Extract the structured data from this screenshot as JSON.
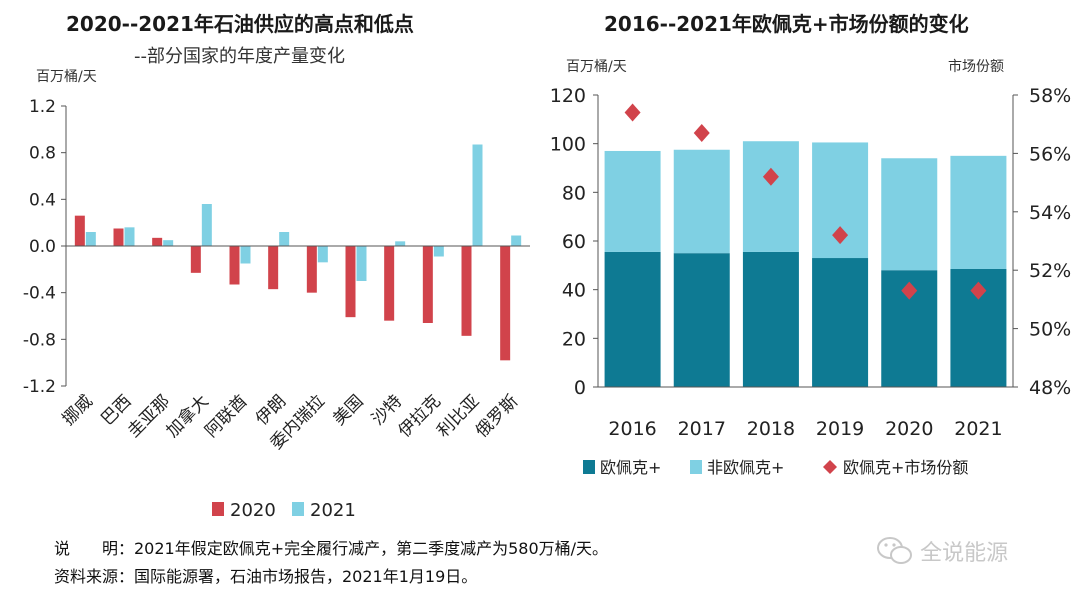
{
  "left": {
    "title": "2020--2021年石油供应的高点和低点",
    "subtitle": "--部分国家的年度产量变化",
    "unit": "百万桶/天"
  },
  "right": {
    "title": "2016--2021年欧佩克+市场份额的变化",
    "unit_left": "百万桶/天",
    "unit_right": "市场份额"
  },
  "notes": {
    "line1": "说　　明：2021年假定欧佩克+完全履行减产，第二季度减产为580万桶/天。",
    "line2": "资料来源：国际能源署，石油市场报告，2021年1月19日。"
  },
  "watermark": "全说能源",
  "colors": {
    "red": "#d1434b",
    "light_blue": "#7fd0e3",
    "teal": "#0e7a93",
    "diamond": "#d1434b"
  },
  "chart_data": [
    {
      "type": "bar",
      "title": "2020--2021年石油供应的高点和低点",
      "subtitle": "--部分国家的年度产量变化",
      "ylabel": "百万桶/天",
      "ylim": [
        -1.2,
        1.2
      ],
      "yticks": [
        "1.2",
        "0.8",
        "0.4",
        "0.0",
        "-0.4",
        "-0.8",
        "-1.2"
      ],
      "ytick_values": [
        1.2,
        0.8,
        0.4,
        0.0,
        -0.4,
        -0.8,
        -1.2
      ],
      "categories": [
        "挪威",
        "巴西",
        "圭亚那",
        "加拿大",
        "阿联酋",
        "伊朗",
        "委内瑞拉",
        "美国",
        "沙特",
        "伊拉克",
        "利比亚",
        "俄罗斯"
      ],
      "series": [
        {
          "name": "2020",
          "values": [
            0.26,
            0.15,
            0.07,
            -0.23,
            -0.33,
            -0.37,
            -0.4,
            -0.61,
            -0.64,
            -0.66,
            -0.77,
            -0.98
          ]
        },
        {
          "name": "2021",
          "values": [
            0.12,
            0.16,
            0.05,
            0.36,
            -0.15,
            0.12,
            -0.14,
            -0.3,
            0.04,
            -0.09,
            0.87,
            0.09
          ]
        }
      ],
      "legend_position": "bottom"
    },
    {
      "type": "bar",
      "title": "2016--2021年欧佩克+市场份额的变化",
      "ylabel": "百万桶/天",
      "y2label": "市场份额",
      "ylim": [
        0,
        120
      ],
      "yticks": [
        "0",
        "20",
        "40",
        "60",
        "80",
        "100",
        "120"
      ],
      "ytick_values": [
        0,
        20,
        40,
        60,
        80,
        100,
        120
      ],
      "y2lim": [
        48,
        58
      ],
      "y2ticks": [
        "48%",
        "50%",
        "52%",
        "54%",
        "56%",
        "58%"
      ],
      "y2tick_values": [
        48,
        50,
        52,
        54,
        56,
        58
      ],
      "categories": [
        "2016",
        "2017",
        "2018",
        "2019",
        "2020",
        "2021"
      ],
      "series": [
        {
          "name": "欧佩克+",
          "values": [
            55.5,
            55.0,
            55.5,
            53.0,
            48.0,
            48.5
          ]
        },
        {
          "name": "非欧佩克+",
          "values": [
            41.5,
            42.5,
            45.5,
            47.5,
            46.0,
            46.5
          ]
        },
        {
          "name": "欧佩克+市场份额",
          "values": [
            57.4,
            56.7,
            55.2,
            53.2,
            51.3,
            51.3
          ]
        }
      ],
      "legend_position": "bottom"
    }
  ]
}
